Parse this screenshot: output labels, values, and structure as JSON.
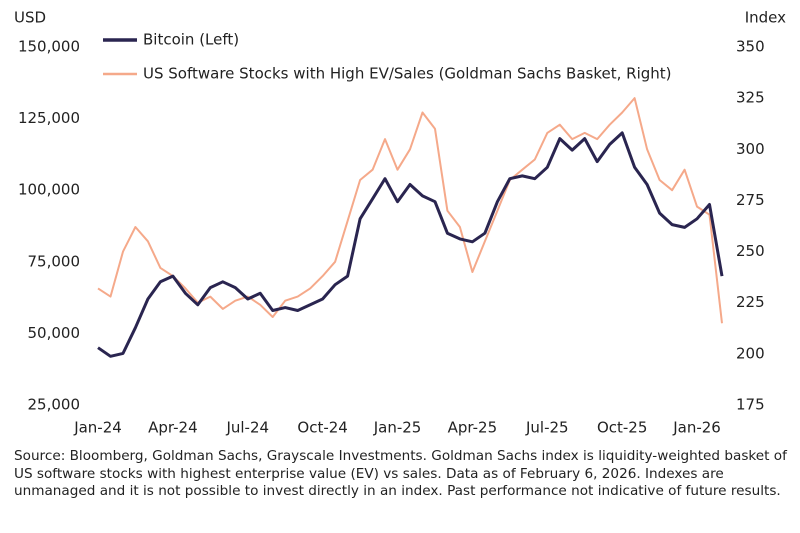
{
  "chart_data": {
    "type": "line",
    "y_label": "USD",
    "y2_label": "Index",
    "categories": [
      "Jan-24",
      null,
      null,
      null,
      null,
      null,
      "Apr-24",
      null,
      null,
      null,
      null,
      null,
      "Jul-24",
      null,
      null,
      null,
      null,
      null,
      "Oct-24",
      null,
      null,
      null,
      null,
      null,
      "Jan-25",
      null,
      null,
      null,
      null,
      null,
      "Apr-25",
      null,
      null,
      null,
      null,
      null,
      "Jul-25",
      null,
      null,
      null,
      null,
      null,
      "Oct-25",
      null,
      null,
      null,
      null,
      null,
      "Jan-26",
      null,
      null
    ],
    "series": [
      {
        "name": "Bitcoin (Left)",
        "color": "#2a2550",
        "axis": "y",
        "values": [
          45000,
          42000,
          43000,
          52000,
          62000,
          68000,
          70000,
          64000,
          60000,
          66000,
          68000,
          66000,
          62000,
          64000,
          58000,
          59000,
          58000,
          60000,
          62000,
          67000,
          70000,
          90000,
          97000,
          104000,
          96000,
          102000,
          98000,
          96000,
          85000,
          83000,
          82000,
          85000,
          96000,
          104000,
          105000,
          104000,
          108000,
          118000,
          114000,
          118000,
          110000,
          116000,
          120000,
          108000,
          102000,
          92000,
          88000,
          87000,
          90000,
          95000,
          70000
        ]
      },
      {
        "name": "US Software Stocks with High EV/Sales (Goldman Sachs Basket, Right)",
        "color": "#f5a98a",
        "axis": "y2",
        "values": [
          232,
          228,
          250,
          262,
          255,
          242,
          238,
          232,
          225,
          228,
          222,
          226,
          228,
          224,
          218,
          226,
          228,
          232,
          238,
          245,
          265,
          285,
          290,
          305,
          290,
          300,
          318,
          310,
          270,
          262,
          240,
          255,
          270,
          285,
          290,
          295,
          308,
          312,
          305,
          308,
          305,
          312,
          318,
          325,
          300,
          285,
          280,
          290,
          272,
          268,
          215
        ]
      }
    ],
    "ylim": [
      25000,
      150000
    ],
    "yticks": [
      {
        "value": 25000,
        "label": "25,000"
      },
      {
        "value": 50000,
        "label": "50,000"
      },
      {
        "value": 75000,
        "label": "75,000"
      },
      {
        "value": 100000,
        "label": "100,000"
      },
      {
        "value": 125000,
        "label": "125,000"
      },
      {
        "value": 150000,
        "label": "150,000"
      }
    ],
    "y2lim": [
      175,
      350
    ],
    "y2ticks": [
      175,
      200,
      225,
      250,
      275,
      300,
      325,
      350
    ],
    "legend": "upper left",
    "note": "Source: Bloomberg, Goldman Sachs, Grayscale Investments. Goldman Sachs index is liquidity-weighted basket of US software stocks with highest enterprise value (EV) vs sales. Data as of February 6, 2026. Indexes are unmanaged and it is not possible to invest directly in an index. Past performance not indicative of future results."
  }
}
